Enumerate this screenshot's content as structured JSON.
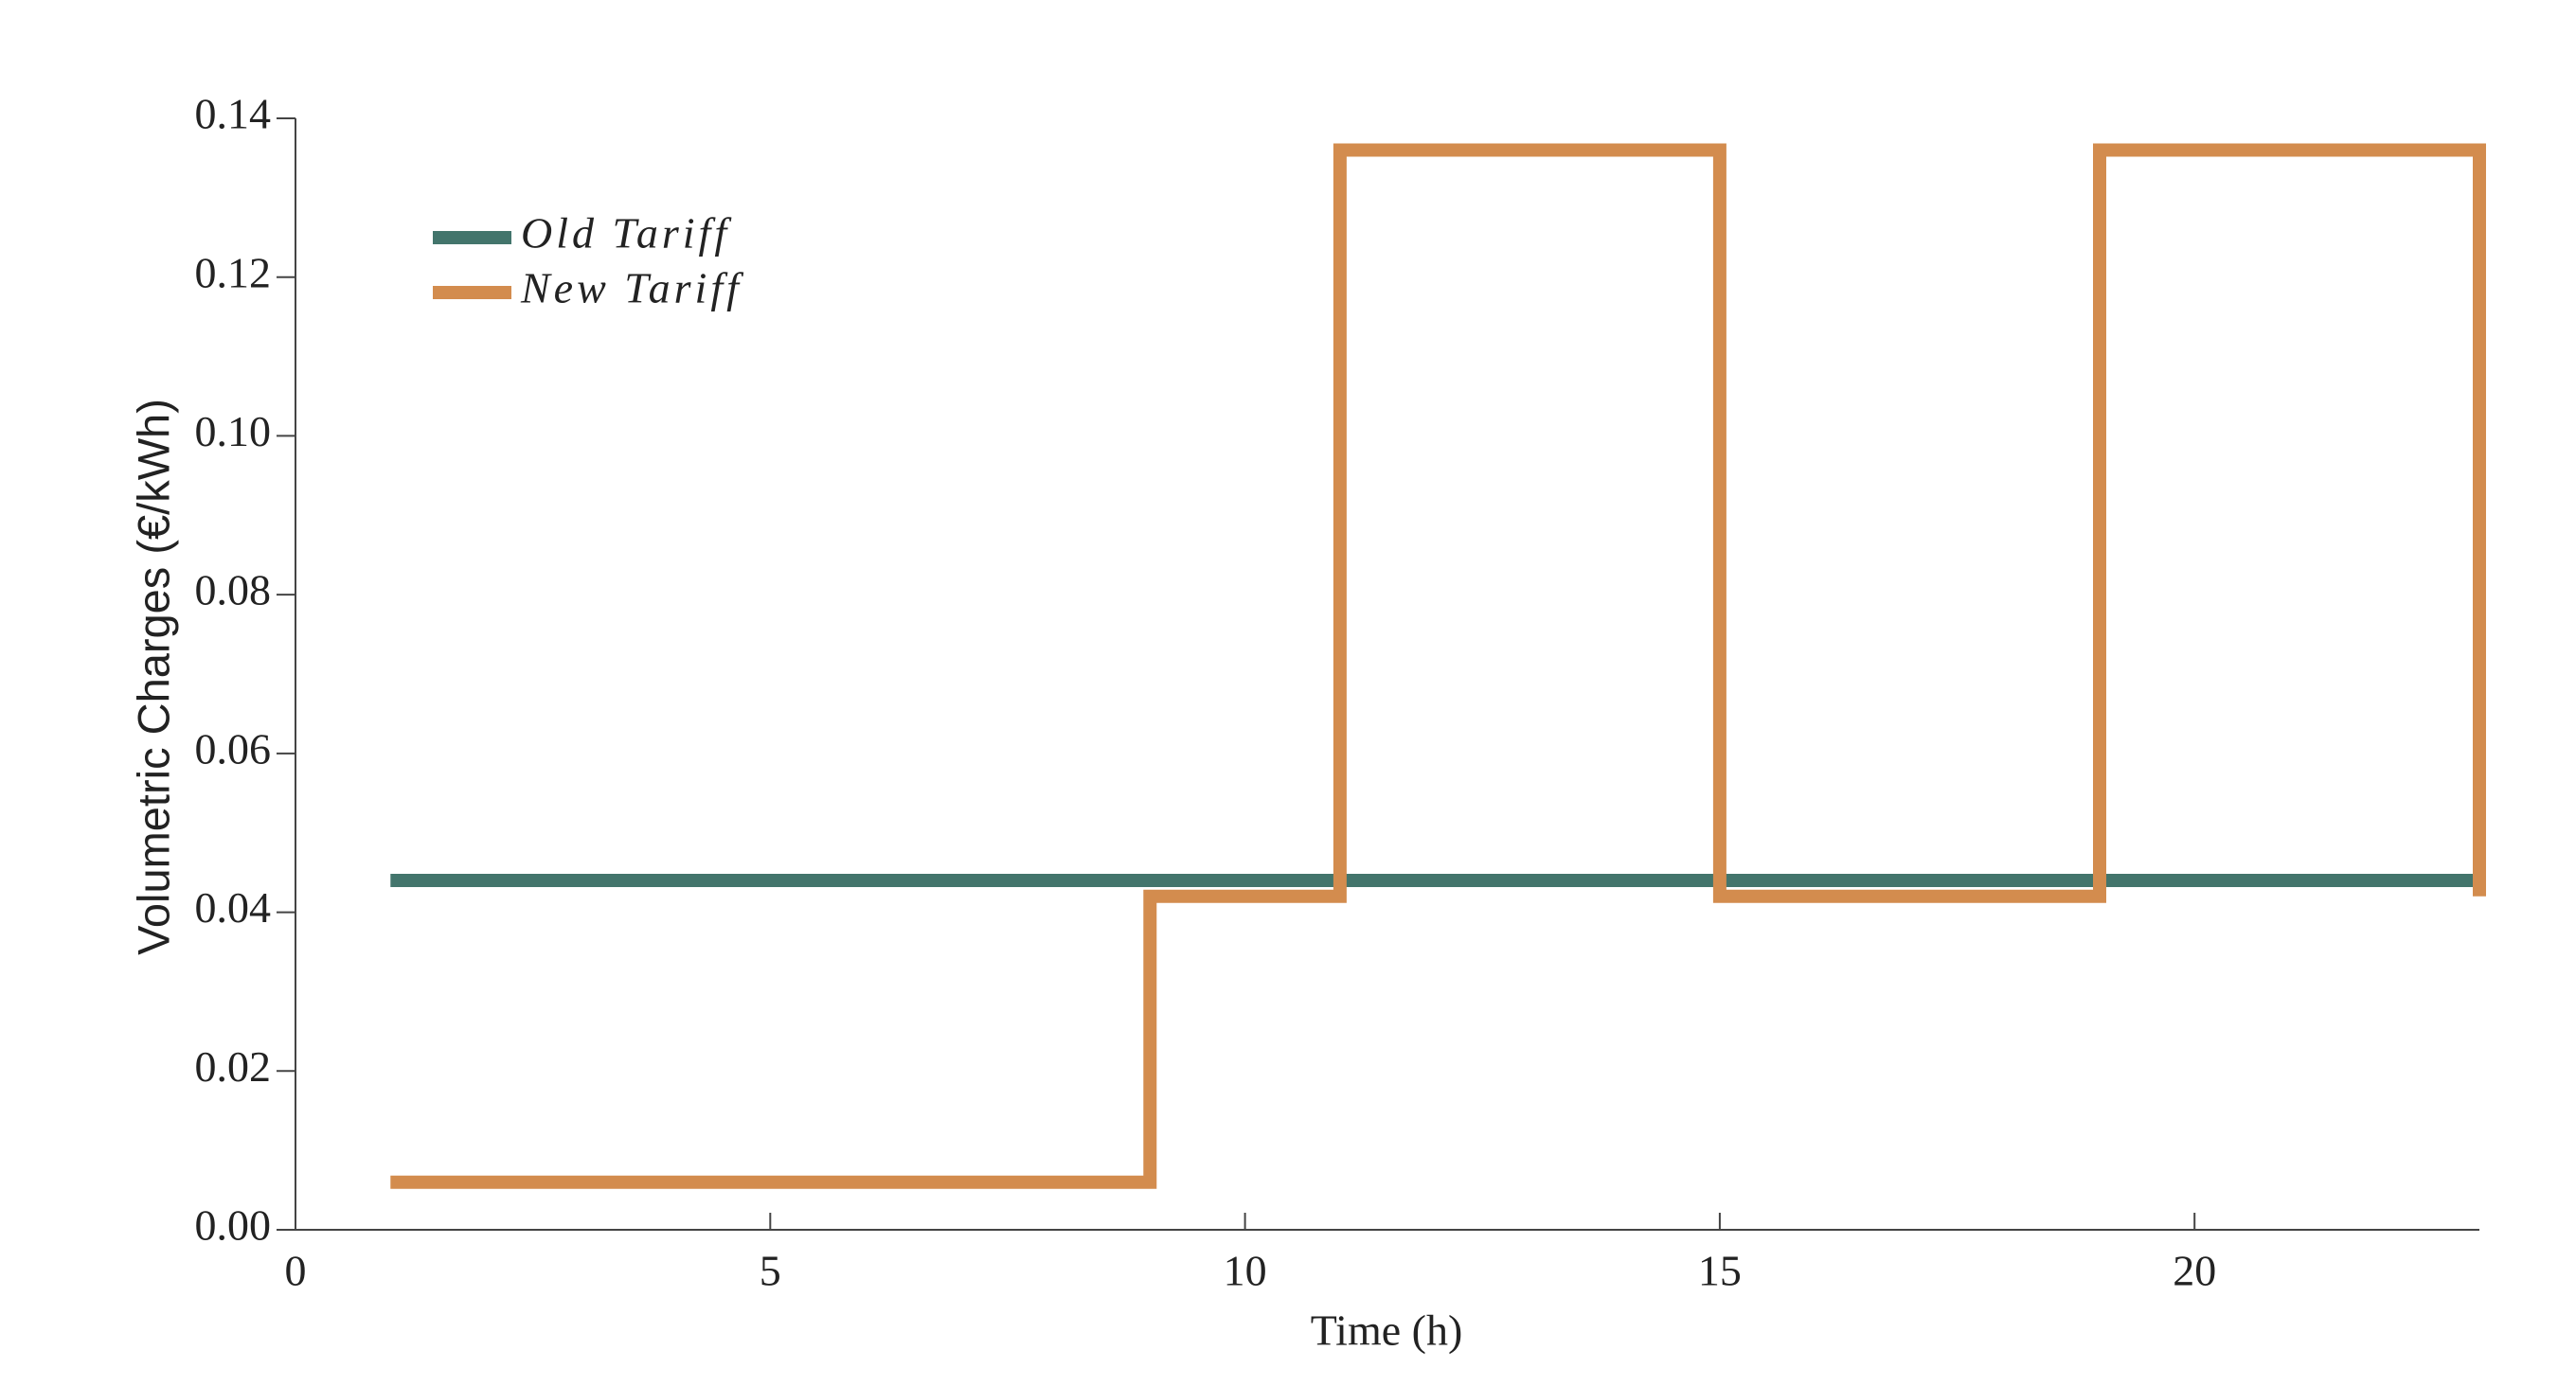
{
  "chart_data": {
    "type": "line",
    "step": "post",
    "x_label": "Time (h)",
    "y_label": "Volumetric Charges (€/kWh)",
    "x": [
      1,
      9,
      11,
      15,
      19,
      23
    ],
    "series": [
      {
        "name": "Old Tariff",
        "color": "#43756c",
        "values": [
          0.044,
          0.044,
          0.044,
          0.044,
          0.044,
          0.044
        ]
      },
      {
        "name": "New Tariff",
        "color": "#d38c4e",
        "values": [
          0.006,
          0.042,
          0.136,
          0.042,
          0.136,
          0.042
        ]
      }
    ],
    "xlim": [
      0,
      23
    ],
    "xticks": [
      0,
      5,
      10,
      15,
      20
    ],
    "ylim": [
      0,
      0.14
    ],
    "yticks": [
      {
        "value": 0,
        "label": "0.00"
      },
      {
        "value": 0.02,
        "label": "0.02"
      },
      {
        "value": 0.04,
        "label": "0.04"
      },
      {
        "value": 0.06,
        "label": "0.06"
      },
      {
        "value": 0.08,
        "label": "0.08"
      },
      {
        "value": 0.1,
        "label": "0.10"
      },
      {
        "value": 0.12,
        "label": "0.12"
      },
      {
        "value": 0.14,
        "label": "0.14"
      }
    ],
    "legend": "upper left",
    "grid": false
  }
}
